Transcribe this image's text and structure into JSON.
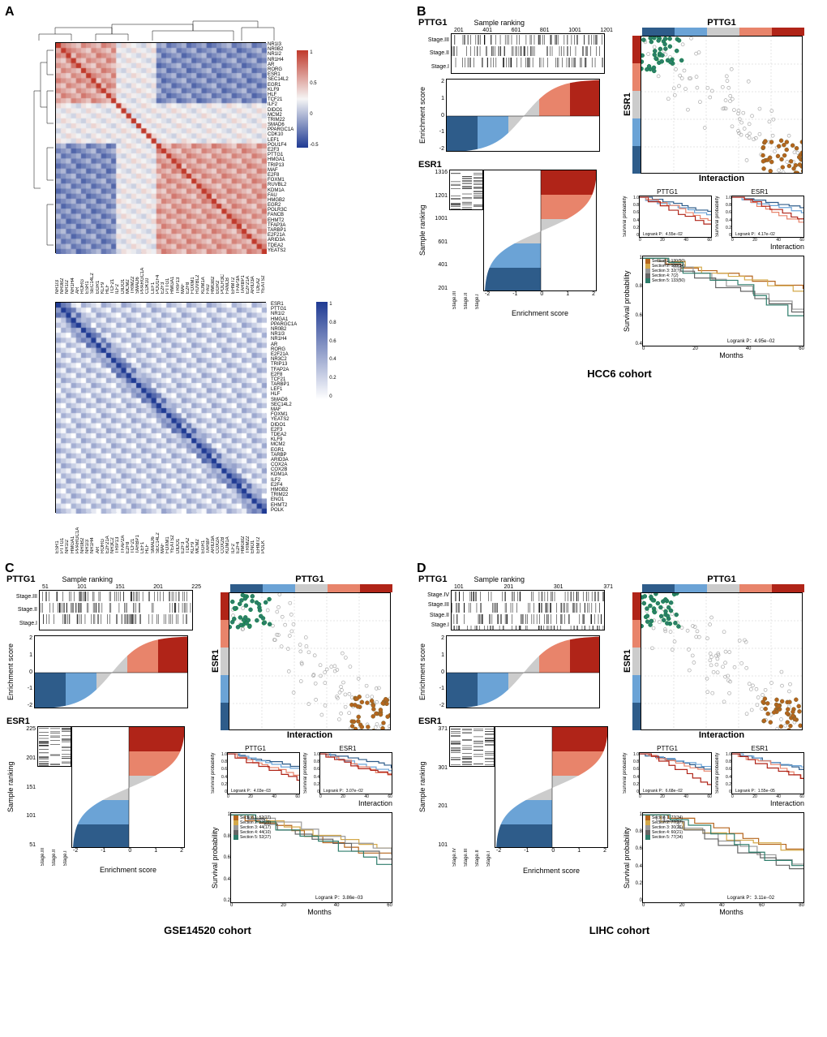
{
  "panels": {
    "A": {
      "label": "A"
    },
    "B": {
      "label": "B",
      "cohort": "HCC6 cohort"
    },
    "C": {
      "label": "C",
      "cohort": "GSE14520 cohort"
    },
    "D": {
      "label": "D",
      "cohort": "LIHC cohort"
    }
  },
  "heatmap_top": {
    "type": "heatmap",
    "genes": [
      "NR1I3",
      "NR0B2",
      "NR1I2",
      "NR1H4",
      "AR",
      "RORG",
      "ESR1",
      "SEC14L2",
      "EGR1",
      "KLF9",
      "HLF",
      "TCF21",
      "ILF2",
      "DIDO1",
      "MCM2",
      "TRIM22",
      "SMAD6",
      "PPARGC1A",
      "CDK10",
      "LEF1",
      "POU1F4",
      "E2F3",
      "PTTG1",
      "HMGA1",
      "TRIP13",
      "MAF",
      "E2F8",
      "FOXM1",
      "RUVBL2",
      "KDM1A",
      "FAU",
      "HMGB2",
      "EGR2",
      "POLR3C",
      "FANCB",
      "EHMT2",
      "TFAP3A",
      "TARBP1",
      "E2F21A",
      "ARID3A",
      "TDEA2",
      "YEATS2"
    ],
    "colorbar": {
      "min": -1,
      "mid": 0,
      "max": 1,
      "min_color": "#1f3a93",
      "mid_color": "#f5f5f5",
      "max_color": "#c0392b",
      "ticks": [
        1,
        0.5,
        0,
        -0.5
      ]
    },
    "diagonal_color": "#c0392b"
  },
  "heatmap_bottom": {
    "type": "heatmap",
    "genes": [
      "ESR1",
      "PTTG1",
      "NR1I2",
      "HMGA1",
      "PPARGC1A",
      "NR0B2",
      "NR1I3",
      "NR1H4",
      "AR",
      "RORG",
      "E2F21A",
      "NR3C2",
      "TRIP13",
      "TFAP2A",
      "E2F8",
      "TCF21",
      "TARBP1",
      "LEF1",
      "HLF",
      "SMAD6",
      "SEC14L2",
      "MAF",
      "FOXM1",
      "YEATS2",
      "DIDO1",
      "E2F3",
      "TDEA2",
      "KLF9",
      "MCM2",
      "EGR1",
      "TARBP",
      "ARID3A",
      "COX2A",
      "COX2B",
      "KDM1A",
      "ILF2",
      "E2F4",
      "HMGB2",
      "TRIM22",
      "ENO1",
      "EHMT2",
      "POLK"
    ],
    "colorbar": {
      "min": 0,
      "max": 1,
      "min_color": "#ffffff",
      "max_color": "#1f3a93",
      "ticks": [
        1,
        0.8,
        0.6,
        0.4,
        0.2,
        0
      ]
    },
    "diagonal_color": "#1f3a93"
  },
  "cohort_B": {
    "pttg1_label": "PTTG1",
    "esr1_label": "ESR1",
    "sample_ranking_label": "Sample ranking",
    "enrichment_label": "Enrichment score",
    "interaction_label": "Interaction",
    "stages": [
      "Stage.III",
      "Stage.II",
      "Stage.I"
    ],
    "pttg1_xticks": [
      201,
      401,
      601,
      801,
      1001,
      1201
    ],
    "esr1_yticks": [
      201,
      401,
      601,
      1001,
      1201,
      1316
    ],
    "enrichment_ylim": [
      -2,
      2
    ],
    "enrichment_yticks": [
      -2,
      -1,
      0,
      1,
      2
    ],
    "esr1_enrichment_xlim": [
      -2,
      2
    ],
    "esr1_enrichment_xticks": [
      -2,
      -1,
      0,
      1,
      2
    ],
    "strip_colors": [
      "#2e5c8a",
      "#6ba3d6",
      "#cccccc",
      "#e8846b",
      "#b02418"
    ],
    "scatter": {
      "teal_color": "#2e7d6b",
      "brown_color": "#b5651d",
      "grey_color": "#aaaaaa",
      "n_teal": 120,
      "n_brown": 120,
      "n_grey": 400
    },
    "surv_pttg1": {
      "title": "PTTG1",
      "logrank": "Logrank P：4.55e−02",
      "xlim": [
        0,
        60
      ],
      "ylim": [
        0,
        1
      ],
      "yticks": [
        0,
        0.2,
        0.4,
        0.6,
        0.8,
        1.0
      ],
      "xticks": [
        0,
        20,
        40,
        60
      ]
    },
    "surv_esr1": {
      "title": "ESR1",
      "logrank": "Logrank P：4.17e−02",
      "xlim": [
        0,
        60
      ],
      "ylim": [
        0,
        1
      ]
    },
    "surv_interaction": {
      "logrank": "Logrank P：4.95e−02",
      "xlabel": "Months",
      "ylabel": "Survival probability",
      "xlim": [
        0,
        60
      ],
      "ylim": [
        0.4,
        1.0
      ],
      "yticks": [
        0.4,
        0.6,
        0.8,
        1.0
      ],
      "xticks": [
        0,
        20,
        40,
        60
      ],
      "sections": [
        {
          "label": "Section 1: 130(50)",
          "color": "#b5651d"
        },
        {
          "label": "Section 2: 108(34)",
          "color": "#d4a94a"
        },
        {
          "label": "Section 3: 32(7)",
          "color": "#999999"
        },
        {
          "label": "Section 4: 7(2)",
          "color": "#666666"
        },
        {
          "label": "Section 5: 133(50)",
          "color": "#2e7d6b"
        }
      ]
    }
  },
  "cohort_C": {
    "pttg1_label": "PTTG1",
    "esr1_label": "ESR1",
    "sample_ranking_label": "Sample ranking",
    "enrichment_label": "Enrichment score",
    "interaction_label": "Interaction",
    "stages": [
      "Stage.III",
      "Stage.II",
      "Stage.I"
    ],
    "pttg1_xticks": [
      51,
      101,
      151,
      201,
      225
    ],
    "esr1_yticks": [
      51,
      101,
      151,
      201,
      225
    ],
    "enrichment_ylim": [
      -2,
      2
    ],
    "enrichment_yticks": [
      -2,
      -1,
      0,
      1,
      2
    ],
    "strip_colors": [
      "#2e5c8a",
      "#6ba3d6",
      "#cccccc",
      "#e8846b",
      "#b02418"
    ],
    "surv_pttg1": {
      "title": "PTTG1",
      "logrank": "Logrank P：4.03e−03"
    },
    "surv_esr1": {
      "title": "ESR1",
      "logrank": "Logrank P：3.07e−02"
    },
    "surv_interaction": {
      "logrank": "Logrank P：3.86e−03",
      "xlabel": "Months",
      "ylabel": "Survival probability",
      "xlim": [
        0,
        60
      ],
      "ylim": [
        0.2,
        1.0
      ],
      "yticks": [
        0.2,
        0.4,
        0.6,
        0.8,
        1.0
      ],
      "sections": [
        {
          "label": "Section 1: 52(27)",
          "color": "#b5651d"
        },
        {
          "label": "Section 2: 32(20)",
          "color": "#d4a94a"
        },
        {
          "label": "Section 3: 44(17)",
          "color": "#999999"
        },
        {
          "label": "Section 4: 44(10)",
          "color": "#666666"
        },
        {
          "label": "Section 5: 52(27)",
          "color": "#2e7d6b"
        }
      ]
    }
  },
  "cohort_D": {
    "pttg1_label": "PTTG1",
    "esr1_label": "ESR1",
    "sample_ranking_label": "Sample ranking",
    "enrichment_label": "Enrichment score",
    "interaction_label": "Interaction",
    "stages": [
      "Stage.IV",
      "Stage.III",
      "Stage.II",
      "Stage.I"
    ],
    "pttg1_xticks": [
      101,
      201,
      301,
      371
    ],
    "esr1_yticks": [
      101,
      201,
      301,
      371
    ],
    "enrichment_ylim": [
      -2,
      2
    ],
    "enrichment_yticks": [
      -2,
      -1,
      0,
      1,
      2
    ],
    "strip_colors": [
      "#2e5c8a",
      "#6ba3d6",
      "#cccccc",
      "#e8846b",
      "#b02418"
    ],
    "surv_pttg1": {
      "title": "PTTG1",
      "logrank": "Logrank P：6.68e−02"
    },
    "surv_esr1": {
      "title": "ESR1",
      "logrank": "Logrank P：1.55e−05"
    },
    "surv_interaction": {
      "logrank": "Logrank P：3.11e−02",
      "xlabel": "Months",
      "ylabel": "Survival probability",
      "xlim": [
        0,
        80
      ],
      "ylim": [
        0,
        1.0
      ],
      "yticks": [
        0,
        0.2,
        0.4,
        0.6,
        0.8,
        1.0
      ],
      "xticks": [
        0,
        20,
        40,
        60,
        80
      ],
      "sections": [
        {
          "label": "Section 1: 77(34)",
          "color": "#b5651d"
        },
        {
          "label": "Section 2: 77(27)",
          "color": "#d4a94a"
        },
        {
          "label": "Section 3: 30(26)",
          "color": "#999999"
        },
        {
          "label": "Section 4: 60(21)",
          "color": "#666666"
        },
        {
          "label": "Section 5: 77(34)",
          "color": "#2e7d6b"
        }
      ]
    }
  },
  "survival_small_colors": [
    "#2e5c8a",
    "#6ba3d6",
    "#e8846b",
    "#b02418"
  ],
  "background_color": "#ffffff",
  "grid_color": "#cccccc"
}
